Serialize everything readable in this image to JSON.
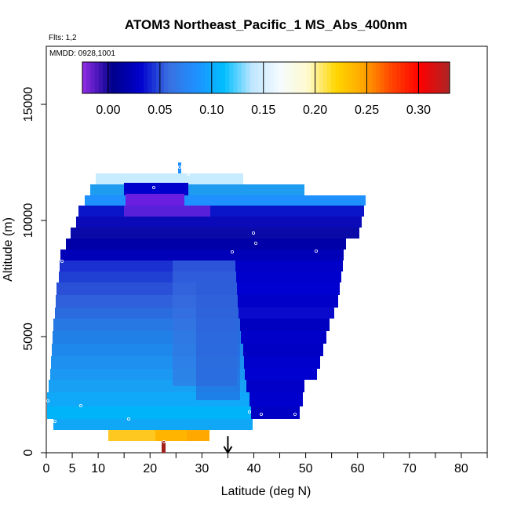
{
  "chart_data": {
    "type": "heatmap",
    "title": "ATOM3 Northeast_Pacific_1 MS_Abs_400nm",
    "notes": [
      "Flts: 1,2",
      "MMDD: 0928,1001"
    ],
    "xlabel": "Latitude (deg N)",
    "ylabel": "Altitude (m)",
    "xlim": [
      0,
      85
    ],
    "ylim": [
      0,
      17500
    ],
    "x_ticks": [
      0,
      5,
      10,
      20,
      30,
      40,
      50,
      60,
      70,
      80
    ],
    "y_ticks": [
      0,
      5000,
      10000,
      15000
    ],
    "y_tick_labels": [
      "0",
      "5000",
      "10000",
      "15000"
    ],
    "colorbar": {
      "min": -0.025,
      "max": 0.33,
      "ticks": [
        0.0,
        0.05,
        0.1,
        0.15,
        0.2,
        0.25,
        0.3
      ],
      "tick_labels": [
        "0.00",
        "0.05",
        "0.10",
        "0.15",
        "0.20",
        "0.25",
        "0.30"
      ],
      "colors": [
        "#8a2be2",
        "#00008b",
        "#0000cd",
        "#3a6fe0",
        "#1e90ff",
        "#00bfff",
        "#bfe6ff",
        "#f5fbff",
        "#fffacd",
        "#ffd700",
        "#ffa500",
        "#ff4500",
        "#ff0000",
        "#b22222"
      ]
    },
    "regions": [
      {
        "name": "upper-rows",
        "x_left": 6.5,
        "x_right": 60,
        "alt_bottom": 10000,
        "alt_top": 12500,
        "value": 0.06
      },
      {
        "name": "west-column",
        "x_left": 1,
        "x_right": 37,
        "alt_bottom": 1000,
        "alt_top": 10000,
        "value": 0.08
      },
      {
        "name": "east-column",
        "x_left": 37,
        "x_right": 57,
        "alt_bottom": 1500,
        "alt_top": 10000,
        "value": 0.02
      },
      {
        "name": "low-west",
        "x_left": 0,
        "x_right": 15,
        "alt_bottom": 1000,
        "alt_top": 2500,
        "value": 0.09
      },
      {
        "name": "boundary-layer",
        "x_left": 12,
        "x_right": 31.5,
        "alt_bottom": 500,
        "alt_top": 1000,
        "value": 0.22
      },
      {
        "name": "surface-point",
        "x_left": 22.3,
        "x_right": 22.9,
        "alt_bottom": 0,
        "alt_top": 500,
        "value": 0.32
      }
    ],
    "marker_arrow_latitude": 35
  }
}
